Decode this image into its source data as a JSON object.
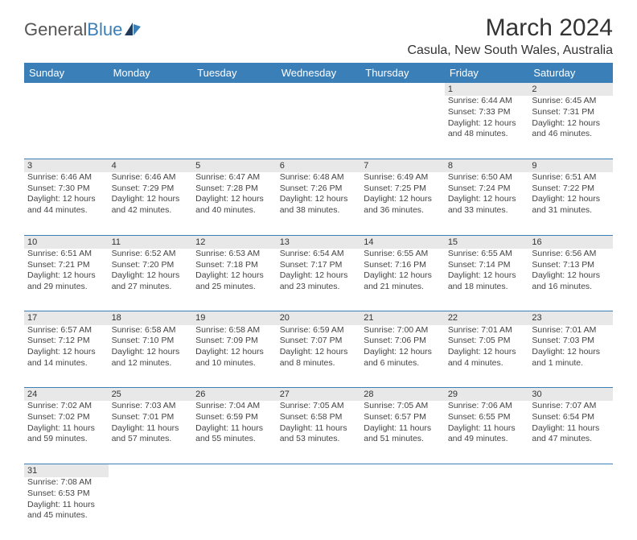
{
  "logo": {
    "text1": "General",
    "text2": "Blue"
  },
  "title": "March 2024",
  "location": "Casula, New South Wales, Australia",
  "colors": {
    "header_bg": "#3a7fb8",
    "header_fg": "#ffffff",
    "daynum_bg": "#e8e8e8",
    "border": "#3a7fb8"
  },
  "columns": [
    "Sunday",
    "Monday",
    "Tuesday",
    "Wednesday",
    "Thursday",
    "Friday",
    "Saturday"
  ],
  "weeks": [
    [
      null,
      null,
      null,
      null,
      null,
      {
        "n": "1",
        "l1": "Sunrise: 6:44 AM",
        "l2": "Sunset: 7:33 PM",
        "l3": "Daylight: 12 hours",
        "l4": "and 48 minutes."
      },
      {
        "n": "2",
        "l1": "Sunrise: 6:45 AM",
        "l2": "Sunset: 7:31 PM",
        "l3": "Daylight: 12 hours",
        "l4": "and 46 minutes."
      }
    ],
    [
      {
        "n": "3",
        "l1": "Sunrise: 6:46 AM",
        "l2": "Sunset: 7:30 PM",
        "l3": "Daylight: 12 hours",
        "l4": "and 44 minutes."
      },
      {
        "n": "4",
        "l1": "Sunrise: 6:46 AM",
        "l2": "Sunset: 7:29 PM",
        "l3": "Daylight: 12 hours",
        "l4": "and 42 minutes."
      },
      {
        "n": "5",
        "l1": "Sunrise: 6:47 AM",
        "l2": "Sunset: 7:28 PM",
        "l3": "Daylight: 12 hours",
        "l4": "and 40 minutes."
      },
      {
        "n": "6",
        "l1": "Sunrise: 6:48 AM",
        "l2": "Sunset: 7:26 PM",
        "l3": "Daylight: 12 hours",
        "l4": "and 38 minutes."
      },
      {
        "n": "7",
        "l1": "Sunrise: 6:49 AM",
        "l2": "Sunset: 7:25 PM",
        "l3": "Daylight: 12 hours",
        "l4": "and 36 minutes."
      },
      {
        "n": "8",
        "l1": "Sunrise: 6:50 AM",
        "l2": "Sunset: 7:24 PM",
        "l3": "Daylight: 12 hours",
        "l4": "and 33 minutes."
      },
      {
        "n": "9",
        "l1": "Sunrise: 6:51 AM",
        "l2": "Sunset: 7:22 PM",
        "l3": "Daylight: 12 hours",
        "l4": "and 31 minutes."
      }
    ],
    [
      {
        "n": "10",
        "l1": "Sunrise: 6:51 AM",
        "l2": "Sunset: 7:21 PM",
        "l3": "Daylight: 12 hours",
        "l4": "and 29 minutes."
      },
      {
        "n": "11",
        "l1": "Sunrise: 6:52 AM",
        "l2": "Sunset: 7:20 PM",
        "l3": "Daylight: 12 hours",
        "l4": "and 27 minutes."
      },
      {
        "n": "12",
        "l1": "Sunrise: 6:53 AM",
        "l2": "Sunset: 7:18 PM",
        "l3": "Daylight: 12 hours",
        "l4": "and 25 minutes."
      },
      {
        "n": "13",
        "l1": "Sunrise: 6:54 AM",
        "l2": "Sunset: 7:17 PM",
        "l3": "Daylight: 12 hours",
        "l4": "and 23 minutes."
      },
      {
        "n": "14",
        "l1": "Sunrise: 6:55 AM",
        "l2": "Sunset: 7:16 PM",
        "l3": "Daylight: 12 hours",
        "l4": "and 21 minutes."
      },
      {
        "n": "15",
        "l1": "Sunrise: 6:55 AM",
        "l2": "Sunset: 7:14 PM",
        "l3": "Daylight: 12 hours",
        "l4": "and 18 minutes."
      },
      {
        "n": "16",
        "l1": "Sunrise: 6:56 AM",
        "l2": "Sunset: 7:13 PM",
        "l3": "Daylight: 12 hours",
        "l4": "and 16 minutes."
      }
    ],
    [
      {
        "n": "17",
        "l1": "Sunrise: 6:57 AM",
        "l2": "Sunset: 7:12 PM",
        "l3": "Daylight: 12 hours",
        "l4": "and 14 minutes."
      },
      {
        "n": "18",
        "l1": "Sunrise: 6:58 AM",
        "l2": "Sunset: 7:10 PM",
        "l3": "Daylight: 12 hours",
        "l4": "and 12 minutes."
      },
      {
        "n": "19",
        "l1": "Sunrise: 6:58 AM",
        "l2": "Sunset: 7:09 PM",
        "l3": "Daylight: 12 hours",
        "l4": "and 10 minutes."
      },
      {
        "n": "20",
        "l1": "Sunrise: 6:59 AM",
        "l2": "Sunset: 7:07 PM",
        "l3": "Daylight: 12 hours",
        "l4": "and 8 minutes."
      },
      {
        "n": "21",
        "l1": "Sunrise: 7:00 AM",
        "l2": "Sunset: 7:06 PM",
        "l3": "Daylight: 12 hours",
        "l4": "and 6 minutes."
      },
      {
        "n": "22",
        "l1": "Sunrise: 7:01 AM",
        "l2": "Sunset: 7:05 PM",
        "l3": "Daylight: 12 hours",
        "l4": "and 4 minutes."
      },
      {
        "n": "23",
        "l1": "Sunrise: 7:01 AM",
        "l2": "Sunset: 7:03 PM",
        "l3": "Daylight: 12 hours",
        "l4": "and 1 minute."
      }
    ],
    [
      {
        "n": "24",
        "l1": "Sunrise: 7:02 AM",
        "l2": "Sunset: 7:02 PM",
        "l3": "Daylight: 11 hours",
        "l4": "and 59 minutes."
      },
      {
        "n": "25",
        "l1": "Sunrise: 7:03 AM",
        "l2": "Sunset: 7:01 PM",
        "l3": "Daylight: 11 hours",
        "l4": "and 57 minutes."
      },
      {
        "n": "26",
        "l1": "Sunrise: 7:04 AM",
        "l2": "Sunset: 6:59 PM",
        "l3": "Daylight: 11 hours",
        "l4": "and 55 minutes."
      },
      {
        "n": "27",
        "l1": "Sunrise: 7:05 AM",
        "l2": "Sunset: 6:58 PM",
        "l3": "Daylight: 11 hours",
        "l4": "and 53 minutes."
      },
      {
        "n": "28",
        "l1": "Sunrise: 7:05 AM",
        "l2": "Sunset: 6:57 PM",
        "l3": "Daylight: 11 hours",
        "l4": "and 51 minutes."
      },
      {
        "n": "29",
        "l1": "Sunrise: 7:06 AM",
        "l2": "Sunset: 6:55 PM",
        "l3": "Daylight: 11 hours",
        "l4": "and 49 minutes."
      },
      {
        "n": "30",
        "l1": "Sunrise: 7:07 AM",
        "l2": "Sunset: 6:54 PM",
        "l3": "Daylight: 11 hours",
        "l4": "and 47 minutes."
      }
    ],
    [
      {
        "n": "31",
        "l1": "Sunrise: 7:08 AM",
        "l2": "Sunset: 6:53 PM",
        "l3": "Daylight: 11 hours",
        "l4": "and 45 minutes."
      },
      null,
      null,
      null,
      null,
      null,
      null
    ]
  ]
}
